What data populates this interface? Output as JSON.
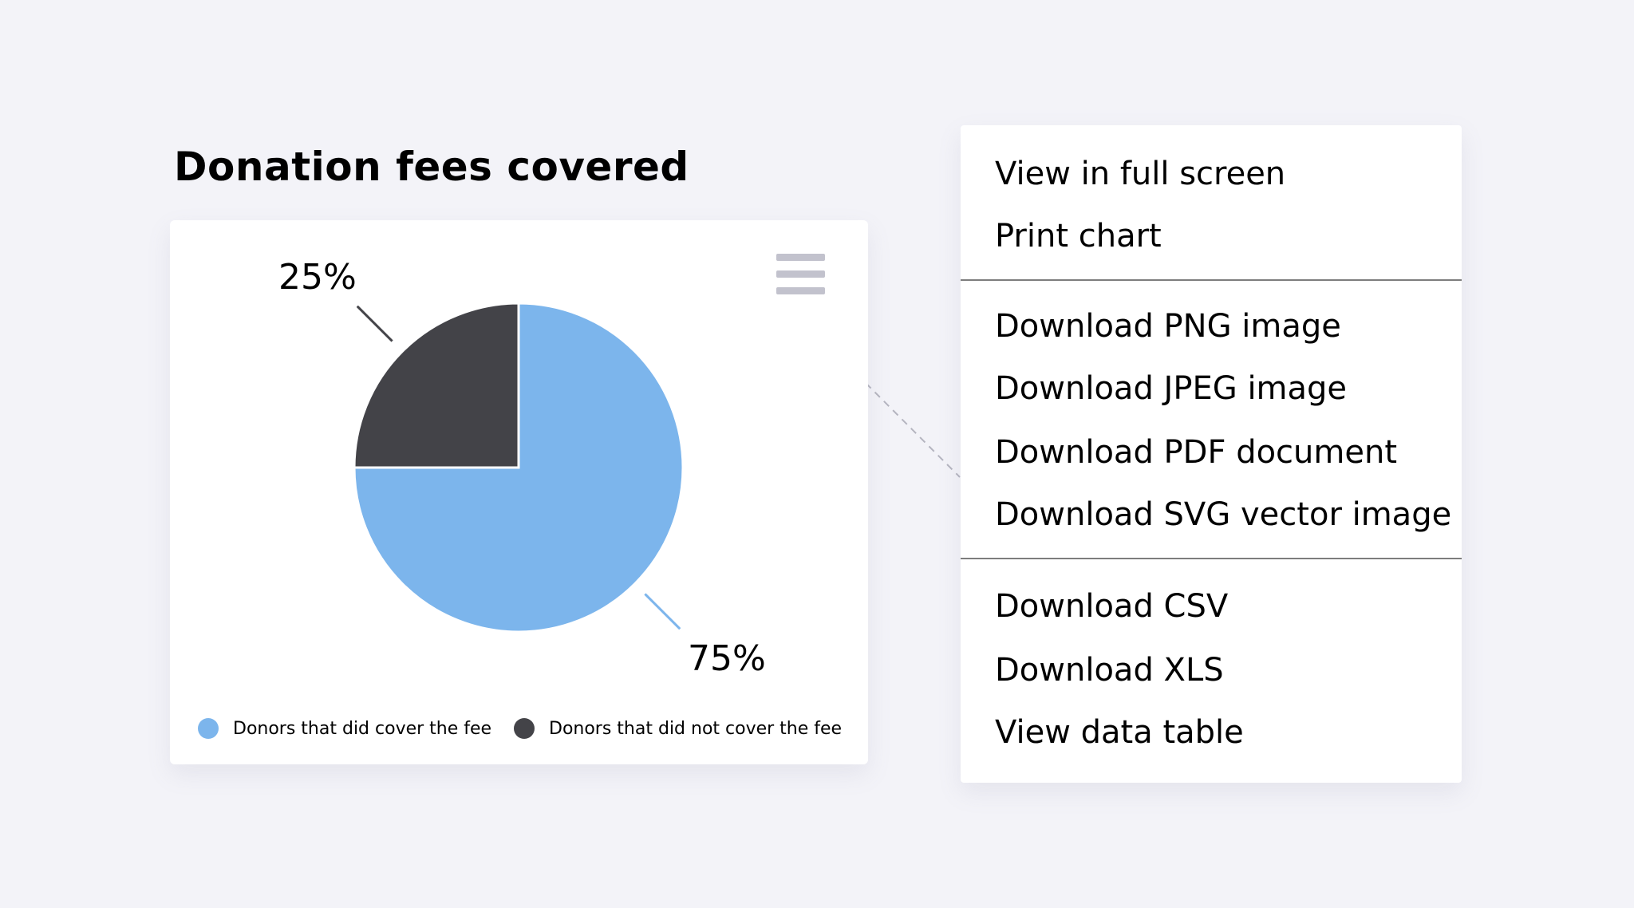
{
  "chart_data": {
    "type": "pie",
    "title": "Donation fees covered",
    "slices": [
      {
        "name": "Donors that did cover the fee",
        "value": 75,
        "label": "75%",
        "color": "#7cb5ec"
      },
      {
        "name": "Donors that did not cover the fee",
        "value": 25,
        "label": "25%",
        "color": "#434348"
      }
    ],
    "legend_placement": "bottom"
  },
  "menu": {
    "icon": "hamburger-menu-icon",
    "items": [
      "View in full screen",
      "Print chart",
      "Download PNG image",
      "Download JPEG image",
      "Download PDF document",
      "Download SVG vector image",
      "Download CSV",
      "Download XLS",
      "View data table"
    ]
  }
}
